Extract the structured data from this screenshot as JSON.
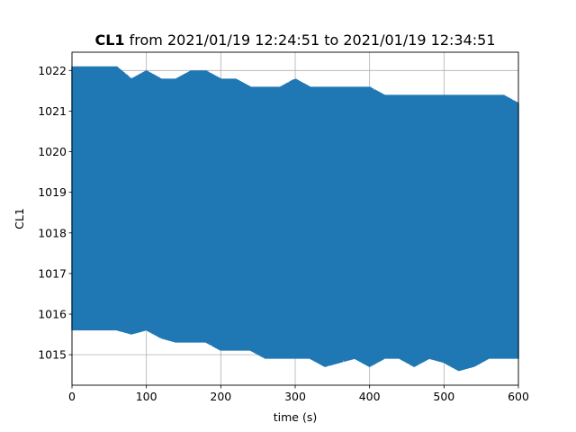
{
  "chart_data": {
    "type": "line",
    "title_bold": "CL1",
    "title_rest": " from 2021/01/19 12:24:51 to 2021/01/19 12:34:51",
    "xlabel": "time (s)",
    "ylabel": "CL1",
    "xlim": [
      0,
      600
    ],
    "ylim": [
      1014.25,
      1022.45
    ],
    "xticks": [
      0,
      100,
      200,
      300,
      400,
      500,
      600
    ],
    "yticks": [
      1015,
      1016,
      1017,
      1018,
      1019,
      1020,
      1021,
      1022
    ],
    "grid": true,
    "series": [
      {
        "color": "#1f77b4",
        "x": [
          0,
          20,
          40,
          60,
          80,
          100,
          120,
          140,
          160,
          180,
          200,
          220,
          240,
          260,
          280,
          300,
          320,
          340,
          360,
          380,
          400,
          420,
          440,
          460,
          480,
          500,
          520,
          540,
          560,
          580,
          600
        ],
        "min": [
          1015.6,
          1015.6,
          1015.6,
          1015.6,
          1015.5,
          1015.6,
          1015.4,
          1015.3,
          1015.3,
          1015.3,
          1015.1,
          1015.1,
          1015.1,
          1014.9,
          1014.9,
          1014.9,
          1014.9,
          1014.7,
          1014.8,
          1014.9,
          1014.7,
          1014.9,
          1014.9,
          1014.7,
          1014.9,
          1014.8,
          1014.6,
          1014.7,
          1014.9,
          1014.9,
          1014.9
        ],
        "max": [
          1022.1,
          1022.1,
          1022.1,
          1022.1,
          1021.8,
          1022.0,
          1021.8,
          1021.8,
          1022.0,
          1022.0,
          1021.8,
          1021.8,
          1021.6,
          1021.6,
          1021.6,
          1021.8,
          1021.6,
          1021.6,
          1021.6,
          1021.6,
          1021.6,
          1021.4,
          1021.4,
          1021.4,
          1021.4,
          1021.4,
          1021.4,
          1021.4,
          1021.4,
          1021.4,
          1021.2
        ]
      }
    ]
  }
}
